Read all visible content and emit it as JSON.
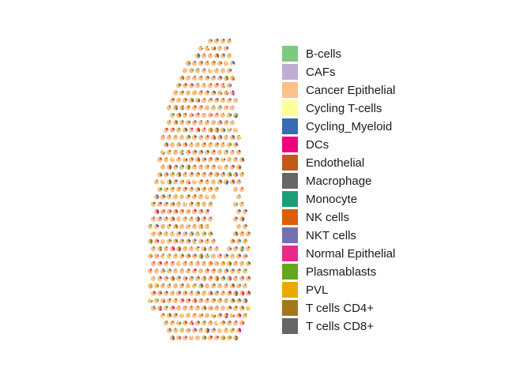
{
  "chart_data": {
    "type": "scatter",
    "subtype": "spatial-scatterpie",
    "title": "",
    "xlabel": "",
    "ylabel": "",
    "grid": false,
    "axes_visible": false,
    "legend_position": "right",
    "dominant_category": "Cancer Epithelial",
    "legend": [
      {
        "name": "B-cells",
        "color": "#7fc97f"
      },
      {
        "name": "CAFs",
        "color": "#beaed4"
      },
      {
        "name": "Cancer Epithelial",
        "color": "#fdc086"
      },
      {
        "name": "Cycling T-cells",
        "color": "#ffff99"
      },
      {
        "name": "Cycling_Myeloid",
        "color": "#386cb0"
      },
      {
        "name": "DCs",
        "color": "#f0027f"
      },
      {
        "name": "Endothelial",
        "color": "#bf5b17"
      },
      {
        "name": "Macrophage",
        "color": "#666666"
      },
      {
        "name": "Monocyte",
        "color": "#1b9e77"
      },
      {
        "name": "NK cells",
        "color": "#d95f02"
      },
      {
        "name": "NKT cells",
        "color": "#7570b3"
      },
      {
        "name": "Normal Epithelial",
        "color": "#e7298a"
      },
      {
        "name": "Plasmablasts",
        "color": "#66a61e"
      },
      {
        "name": "PVL",
        "color": "#e6ab02"
      },
      {
        "name": "T cells CD4+",
        "color": "#a6761d"
      },
      {
        "name": "T cells CD8+",
        "color": "#666666"
      }
    ]
  }
}
